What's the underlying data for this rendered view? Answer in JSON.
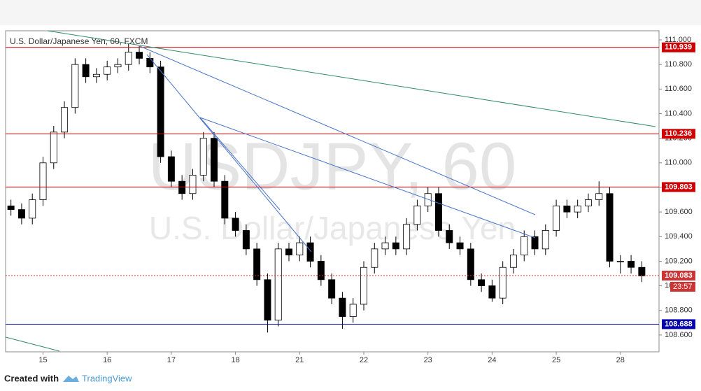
{
  "chart_data": {
    "type": "candlestick",
    "title": "U.S. Dollar/Japanese Yen, 60, FXCM",
    "watermark": "USDJPY, 60",
    "watermark_subtitle": "U.S. Dollar/Japanese Yen",
    "up_color": "#ffffff",
    "down_color": "#000000",
    "categories": [
      null,
      null,
      null,
      "15",
      null,
      null,
      null,
      null,
      null,
      "16",
      null,
      null,
      null,
      null,
      null,
      "17",
      null,
      null,
      null,
      null,
      null,
      "18",
      null,
      null,
      null,
      null,
      null,
      "21",
      null,
      null,
      null,
      null,
      null,
      "22",
      null,
      null,
      null,
      null,
      null,
      "23",
      null,
      null,
      null,
      null,
      null,
      "24",
      null,
      null,
      null,
      null,
      null,
      "25",
      null,
      null,
      null,
      null,
      null,
      "28",
      null,
      null
    ],
    "open": [
      109.65,
      109.62,
      109.55,
      109.7,
      110.0,
      110.25,
      110.45,
      110.8,
      110.7,
      110.72,
      110.78,
      110.8,
      110.9,
      110.85,
      110.78,
      110.05,
      109.85,
      109.75,
      109.9,
      110.2,
      109.85,
      109.55,
      109.45,
      109.3,
      109.05,
      108.72,
      109.3,
      109.25,
      109.35,
      109.2,
      109.05,
      108.9,
      108.75,
      108.85,
      109.15,
      109.3,
      109.35,
      109.3,
      109.5,
      109.65,
      109.75,
      109.45,
      109.35,
      109.3,
      109.05,
      109.0,
      108.9,
      109.15,
      109.25,
      109.4,
      109.3,
      109.45,
      109.65,
      109.6,
      109.65,
      109.7,
      109.75,
      109.2,
      109.2,
      109.15
    ],
    "high": [
      109.7,
      109.67,
      109.75,
      110.05,
      110.3,
      110.5,
      110.85,
      110.85,
      110.77,
      110.83,
      110.85,
      110.97,
      110.95,
      110.9,
      110.83,
      110.1,
      109.9,
      109.95,
      110.25,
      110.25,
      109.9,
      109.6,
      109.5,
      109.35,
      109.1,
      109.35,
      109.35,
      109.4,
      109.4,
      109.25,
      109.1,
      108.95,
      108.9,
      109.2,
      109.35,
      109.4,
      109.4,
      109.55,
      109.7,
      109.8,
      109.8,
      109.5,
      109.4,
      109.35,
      109.1,
      109.05,
      109.2,
      109.3,
      109.45,
      109.45,
      109.5,
      109.7,
      109.7,
      109.7,
      109.75,
      109.85,
      109.8,
      109.25,
      109.25,
      109.2
    ],
    "low": [
      109.57,
      109.5,
      109.5,
      109.65,
      109.95,
      110.2,
      110.4,
      110.65,
      110.65,
      110.67,
      110.73,
      110.75,
      110.8,
      110.73,
      110.0,
      109.8,
      109.7,
      109.7,
      109.85,
      109.8,
      109.5,
      109.4,
      109.25,
      109.0,
      108.62,
      108.67,
      109.2,
      109.2,
      109.15,
      109.0,
      108.85,
      108.65,
      108.7,
      108.8,
      109.1,
      109.25,
      109.25,
      109.25,
      109.45,
      109.6,
      109.4,
      109.3,
      109.25,
      109.0,
      108.95,
      108.87,
      108.85,
      109.1,
      109.2,
      109.25,
      109.25,
      109.4,
      109.55,
      109.55,
      109.6,
      109.65,
      109.15,
      109.1,
      109.1,
      109.03
    ],
    "close": [
      109.62,
      109.55,
      109.7,
      110.0,
      110.25,
      110.45,
      110.8,
      110.7,
      110.72,
      110.78,
      110.8,
      110.9,
      110.85,
      110.78,
      110.05,
      109.85,
      109.75,
      109.9,
      110.2,
      109.85,
      109.55,
      109.45,
      109.3,
      109.05,
      108.72,
      109.3,
      109.25,
      109.35,
      109.2,
      109.05,
      108.9,
      108.75,
      108.85,
      109.15,
      109.3,
      109.35,
      109.3,
      109.5,
      109.65,
      109.75,
      109.45,
      109.35,
      109.3,
      109.05,
      109.0,
      108.9,
      109.15,
      109.25,
      109.4,
      109.3,
      109.45,
      109.65,
      109.6,
      109.65,
      109.7,
      109.75,
      109.2,
      109.2,
      109.15,
      109.08
    ],
    "ylim": [
      108.463,
      111.074
    ],
    "yticks": [
      {
        "value": 108.6,
        "label": "108.600"
      },
      {
        "value": 108.8,
        "label": "108.800"
      },
      {
        "value": 109.0,
        "label": "109.000"
      },
      {
        "value": 109.2,
        "label": "109.200"
      },
      {
        "value": 109.4,
        "label": "109.400"
      },
      {
        "value": 109.6,
        "label": "109.600"
      },
      {
        "value": 109.8,
        "label": "109.800"
      },
      {
        "value": 110.0,
        "label": "110.000"
      },
      {
        "value": 110.2,
        "label": "110.200"
      },
      {
        "value": 110.4,
        "label": "110.400"
      },
      {
        "value": 110.6,
        "label": "110.600"
      },
      {
        "value": 110.8,
        "label": "110.800"
      },
      {
        "value": 111.0,
        "label": "111.000"
      }
    ],
    "price_lines": [
      {
        "value": 110.939,
        "color": "#cc0000",
        "style": "solid"
      },
      {
        "value": 110.236,
        "color": "#cc0000",
        "style": "solid"
      },
      {
        "value": 109.803,
        "color": "#cc0000",
        "style": "solid"
      },
      {
        "value": 109.083,
        "color": "#cc3333",
        "style": "dotted"
      },
      {
        "value": 108.688,
        "color": "#0000aa",
        "style": "solid"
      }
    ],
    "countdown": "23:57",
    "footer": {
      "created_with": "Created with",
      "brand": "TradingView"
    }
  }
}
